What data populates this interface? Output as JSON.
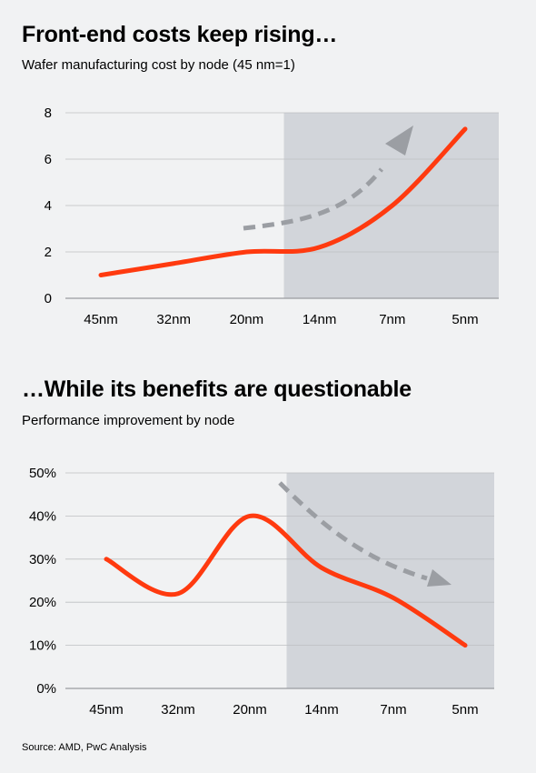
{
  "chart_data": [
    {
      "type": "line",
      "title": "Front-end costs keep rising…",
      "subtitle": "Wafer manufacturing cost by node (45 nm=1)",
      "categories": [
        "45nm",
        "32nm",
        "20nm",
        "14nm",
        "7nm",
        "5nm"
      ],
      "series": [
        {
          "values": [
            1.0,
            1.5,
            2.0,
            2.2,
            4.0,
            7.3
          ]
        }
      ],
      "y_ticks": [
        "0",
        "2",
        "4",
        "6",
        "8"
      ],
      "ylim": [
        0,
        8
      ],
      "grid": true,
      "highlight_region": [
        "14nm",
        "5nm"
      ],
      "trend_arrow": "up",
      "colors": {
        "line": "#ff3a0f",
        "highlight": "#d2d5da",
        "arrow": "#9b9ea3",
        "grid": "#bdbfc2"
      }
    },
    {
      "type": "line",
      "title": "…While its benefits are questionable",
      "subtitle": "Performance improvement by node",
      "categories": [
        "45nm",
        "32nm",
        "20nm",
        "14nm",
        "7nm",
        "5nm"
      ],
      "series": [
        {
          "values": [
            30,
            22,
            40,
            28,
            21,
            10
          ]
        }
      ],
      "y_ticks": [
        "0%",
        "10%",
        "20%",
        "30%",
        "40%",
        "50%"
      ],
      "ylim": [
        0,
        50
      ],
      "grid": true,
      "highlight_region": [
        "14nm",
        "5nm"
      ],
      "trend_arrow": "down",
      "colors": {
        "line": "#ff3a0f",
        "highlight": "#d2d5da",
        "arrow": "#9b9ea3",
        "grid": "#bdbfc2"
      }
    }
  ],
  "source": "Source: AMD, PwC Analysis"
}
